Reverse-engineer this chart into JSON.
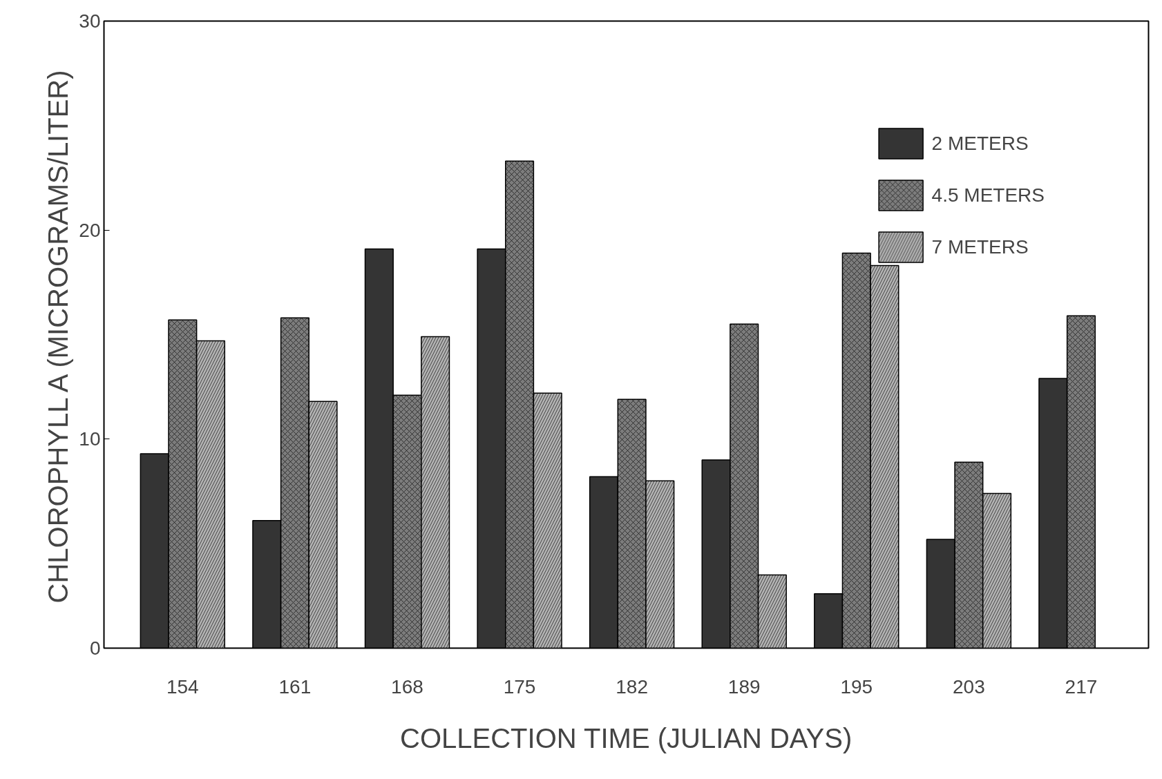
{
  "chart_data": {
    "type": "bar",
    "xlabel": "COLLECTION TIME (JULIAN DAYS)",
    "ylabel": "CHLOROPHYLL A (MICROGRAMS/LITER)",
    "categories": [
      "154",
      "161",
      "168",
      "175",
      "182",
      "189",
      "195",
      "203",
      "217"
    ],
    "series": [
      {
        "name": "2 METERS",
        "color": "#1e1e1e",
        "values": [
          9.3,
          6.1,
          19.1,
          19.1,
          8.2,
          9.0,
          2.6,
          5.2,
          12.9
        ]
      },
      {
        "name": "4.5 METERS",
        "color": "#6e6e6e",
        "values": [
          15.7,
          15.8,
          12.1,
          23.3,
          11.9,
          15.5,
          18.9,
          8.9,
          15.9
        ]
      },
      {
        "name": "7 METERS",
        "color": "#a8a8a8",
        "values": [
          14.7,
          11.8,
          14.9,
          12.2,
          8.0,
          3.5,
          18.3,
          7.4,
          null
        ]
      }
    ],
    "ylim": [
      0,
      30
    ],
    "yticks": [
      0,
      10,
      20,
      30
    ],
    "grid": false,
    "legend": "top right"
  }
}
